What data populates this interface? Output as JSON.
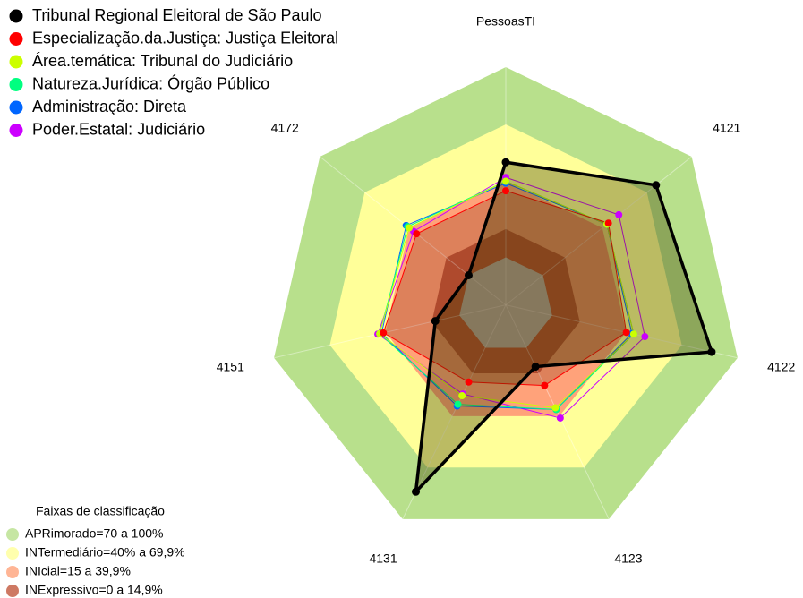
{
  "chart_data": {
    "type": "radar",
    "categories": [
      "PessoasTI",
      "4121",
      "4122",
      "4123",
      "4131",
      "4151",
      "4172"
    ],
    "rlim": [
      -25,
      100
    ],
    "series": [
      {
        "name": "Tribunal Regional Eleitoral de São Paulo",
        "color": "#000000",
        "values": [
          50,
          76,
          86,
          11,
          84,
          13,
          0
        ]
      },
      {
        "name": "Especialização.da.Justiça: Justiça Eleitoral",
        "color": "#ff0000",
        "values": [
          35,
          44,
          40,
          22,
          20,
          41,
          35
        ]
      },
      {
        "name": "Área.temática: Tribunal do Judiciário",
        "color": "#ccff00",
        "values": [
          40,
          43,
          44,
          35,
          28,
          43,
          40
        ]
      },
      {
        "name": "Natureza.Jurídica: Órgão Público",
        "color": "#00ff80",
        "values": [
          40,
          43,
          44,
          36,
          33,
          43,
          41
        ]
      },
      {
        "name": "Administração: Direta",
        "color": "#0066ff",
        "values": [
          39,
          43,
          43,
          36,
          34,
          42,
          42
        ]
      },
      {
        "name": "Poder.Estatal: Judiciário",
        "color": "#cc00ff",
        "values": [
          42,
          51,
          50,
          41,
          27,
          44,
          37
        ]
      }
    ],
    "bands_title": "Faixas de classificação",
    "bands": [
      {
        "label": "APRimorado=70 a 100%",
        "color": "#b8e08c",
        "range": [
          70,
          100
        ]
      },
      {
        "label": "INTermediário=40% a 69,9%",
        "color": "#ffff99",
        "range": [
          40,
          69.9
        ]
      },
      {
        "label": "INIcial=15 a 39,9%",
        "color": "#ffa27a",
        "range": [
          15,
          39.9
        ]
      },
      {
        "label": "INExpressivo=0 a 14,9%",
        "color": "#c2583c",
        "range": [
          0,
          14.9
        ]
      }
    ]
  }
}
